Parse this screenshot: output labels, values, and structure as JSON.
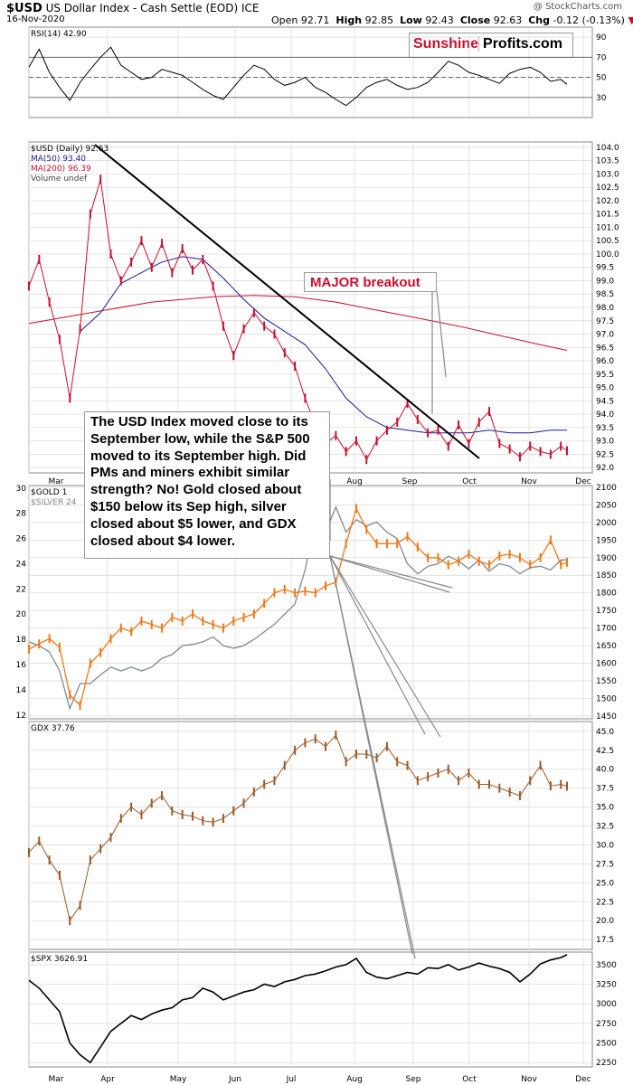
{
  "header": {
    "symbol": "$USD",
    "name": "US Dollar Index - Cash Settle (EOD)",
    "exchange": "ICE",
    "date": "16-Nov-2020",
    "watermark": "@ StockCharts.com",
    "ohlc": {
      "open_label": "Open",
      "open": "92.71",
      "high_label": "High",
      "high": "92.85",
      "low_label": "Low",
      "low": "92.43",
      "close_label": "Close",
      "close": "92.63",
      "chg_label": "Chg",
      "chg": "-0.12 (-0.13%)"
    }
  },
  "logo": {
    "left": "Sunshine",
    "right": "Profits.com"
  },
  "annotations": {
    "breakout": "MAJOR breakout",
    "comment_lines": [
      "The USD Index moved close to its",
      "September low, while the S&P 500",
      "moved to its September high. Did",
      "PMs and miners exhibit similar",
      "strength? No! Gold closed about",
      "$150 below its Sep high, silver",
      "closed about $5 lower, and GDX",
      "closed about $4 lower."
    ]
  },
  "colors": {
    "usd": "#c8102e",
    "ma50": "#1a1a9c",
    "ma200": "#c8102e",
    "gold": "#f07818",
    "silver": "#7f8a90",
    "gdx": "#9c5a28",
    "spx": "#000000",
    "rsi": "#000000",
    "grid": "#d8d8d8",
    "rsi_fill_overbought": "#6fa06f",
    "rsi_fill_oversold": "#a87070"
  },
  "x_axis": {
    "months": [
      "Mar",
      "Apr",
      "May",
      "Jun",
      "Jul",
      "Aug",
      "Sep",
      "Oct",
      "Nov",
      "Dec"
    ],
    "top_months": [
      "Mar",
      "Aug",
      "Sep",
      "Oct",
      "Nov",
      "Dec"
    ]
  },
  "chart_data": [
    {
      "type": "line",
      "title": "RSI(14) 42.90",
      "y_ticks": [
        30,
        50,
        70,
        90
      ],
      "ylim": [
        10,
        100
      ],
      "reference_lines": [
        30,
        50,
        70
      ],
      "x": [
        0,
        5,
        10,
        15,
        20,
        25,
        30,
        35,
        40,
        45,
        50,
        55,
        60,
        65,
        70,
        75,
        80,
        85,
        90,
        95,
        100,
        105,
        110,
        115,
        120,
        125,
        130,
        135,
        140,
        145,
        150,
        155,
        160,
        165,
        170,
        175,
        180,
        185,
        190,
        195,
        200,
        205,
        210,
        215,
        220,
        225,
        230,
        235,
        240,
        245,
        250,
        255,
        260,
        263
      ],
      "values": [
        60,
        78,
        55,
        40,
        27,
        45,
        58,
        70,
        80,
        62,
        55,
        48,
        50,
        58,
        55,
        52,
        45,
        38,
        32,
        28,
        40,
        52,
        62,
        58,
        48,
        42,
        45,
        50,
        40,
        35,
        28,
        22,
        30,
        40,
        45,
        48,
        42,
        38,
        40,
        45,
        55,
        66,
        62,
        55,
        52,
        48,
        44,
        54,
        58,
        60,
        55,
        46,
        48,
        43
      ]
    },
    {
      "type": "line",
      "title": "$USD (Daily) 92.63",
      "legend": [
        "MA(50) 93.40",
        "MA(200) 96.39",
        "Volume undef"
      ],
      "y_ticks": [
        92.0,
        92.5,
        93.0,
        93.5,
        94.0,
        94.5,
        95.0,
        95.5,
        96.0,
        96.5,
        97.0,
        97.5,
        98.0,
        98.5,
        99.0,
        99.5,
        100.0,
        100.5,
        101.0,
        101.5,
        102.0,
        102.5,
        103.0,
        103.5,
        104.0
      ],
      "ylim": [
        91.8,
        104.2
      ],
      "series": [
        {
          "name": "$USD (Daily) 92.63",
          "x": [
            0,
            5,
            10,
            15,
            20,
            25,
            30,
            35,
            40,
            45,
            50,
            55,
            60,
            65,
            70,
            75,
            80,
            85,
            90,
            95,
            100,
            105,
            110,
            115,
            120,
            125,
            130,
            135,
            140,
            145,
            150,
            155,
            160,
            165,
            170,
            175,
            180,
            185,
            190,
            195,
            200,
            205,
            210,
            215,
            220,
            225,
            230,
            235,
            240,
            245,
            250,
            255,
            260,
            263
          ],
          "values": [
            98.8,
            99.8,
            98.2,
            96.8,
            94.6,
            97.2,
            101.5,
            102.8,
            100.0,
            99.0,
            99.7,
            100.5,
            99.5,
            100.4,
            99.3,
            100.2,
            99.4,
            99.8,
            98.8,
            97.3,
            96.2,
            97.2,
            97.8,
            97.3,
            97.0,
            96.3,
            95.8,
            94.6,
            93.6,
            92.9,
            93.2,
            92.6,
            93.0,
            92.3,
            93.0,
            93.4,
            93.7,
            94.4,
            93.8,
            93.3,
            93.4,
            92.8,
            93.6,
            92.9,
            93.7,
            94.1,
            92.9,
            92.7,
            92.4,
            92.8,
            92.6,
            92.5,
            92.8,
            92.63
          ]
        },
        {
          "name": "MA(50) 93.40",
          "x": [
            25,
            35,
            45,
            55,
            65,
            75,
            85,
            95,
            105,
            115,
            125,
            135,
            145,
            155,
            165,
            175,
            185,
            195,
            205,
            215,
            225,
            235,
            245,
            255,
            263
          ],
          "values": [
            97.1,
            97.8,
            98.9,
            99.3,
            99.7,
            99.9,
            99.8,
            99.1,
            98.3,
            97.6,
            97.1,
            96.6,
            95.7,
            94.6,
            93.9,
            93.5,
            93.4,
            93.3,
            93.3,
            93.3,
            93.4,
            93.3,
            93.3,
            93.4,
            93.4
          ]
        },
        {
          "name": "MA(200) 96.39",
          "x": [
            0,
            30,
            60,
            90,
            110,
            130,
            150,
            170,
            190,
            210,
            230,
            250,
            263
          ],
          "values": [
            97.4,
            97.8,
            98.2,
            98.4,
            98.45,
            98.4,
            98.2,
            97.9,
            97.6,
            97.3,
            96.95,
            96.6,
            96.39
          ]
        }
      ]
    },
    {
      "type": "line",
      "title": "$GOLD 1",
      "legend": [
        "$GOLD 1",
        "$SILVER 24"
      ],
      "y_ticks_left": [
        12,
        14,
        16,
        18,
        20,
        22,
        24,
        26,
        28,
        30
      ],
      "y_ticks_right": [
        1450,
        1500,
        1550,
        1600,
        1650,
        1700,
        1750,
        1800,
        1850,
        1900,
        1950,
        2000,
        2050,
        2100
      ],
      "ylim_left": [
        11.7,
        30.2
      ],
      "ylim_right": [
        1442,
        2105
      ],
      "series": [
        {
          "name": "$GOLD 1",
          "axis": "right",
          "x": [
            0,
            5,
            10,
            15,
            20,
            25,
            30,
            35,
            40,
            45,
            50,
            55,
            60,
            65,
            70,
            75,
            80,
            85,
            90,
            95,
            100,
            105,
            110,
            115,
            120,
            125,
            130,
            135,
            140,
            145,
            150,
            155,
            160,
            165,
            170,
            175,
            180,
            185,
            190,
            195,
            200,
            205,
            210,
            215,
            220,
            225,
            230,
            235,
            240,
            245,
            250,
            255,
            260,
            263
          ],
          "values": [
            1640,
            1655,
            1670,
            1645,
            1510,
            1480,
            1600,
            1630,
            1670,
            1700,
            1690,
            1720,
            1710,
            1700,
            1730,
            1720,
            1740,
            1720,
            1710,
            1700,
            1720,
            1730,
            1740,
            1770,
            1800,
            1810,
            1800,
            1805,
            1800,
            1820,
            1830,
            1940,
            2040,
            1980,
            1940,
            1940,
            1940,
            1960,
            1930,
            1900,
            1900,
            1880,
            1890,
            1910,
            1890,
            1880,
            1905,
            1910,
            1900,
            1880,
            1900,
            1950,
            1880,
            1887
          ]
        },
        {
          "name": "$SILVER 24",
          "axis": "left",
          "x": [
            0,
            5,
            10,
            15,
            20,
            25,
            30,
            35,
            40,
            45,
            50,
            55,
            60,
            65,
            70,
            75,
            80,
            85,
            90,
            95,
            100,
            105,
            110,
            115,
            120,
            125,
            130,
            135,
            140,
            145,
            150,
            155,
            160,
            165,
            170,
            175,
            180,
            185,
            190,
            195,
            200,
            205,
            210,
            215,
            220,
            225,
            230,
            235,
            240,
            245,
            250,
            255,
            260,
            263
          ],
          "values": [
            17.8,
            17.5,
            17.0,
            15.5,
            12.5,
            14.5,
            14.5,
            15.2,
            15.8,
            15.5,
            15.8,
            15.5,
            15.8,
            16.5,
            16.8,
            17.5,
            17.6,
            17.8,
            18.2,
            17.5,
            17.3,
            17.5,
            18.0,
            18.6,
            19.2,
            20.0,
            20.8,
            23.5,
            27.5,
            26.5,
            28.5,
            26.5,
            27.5,
            27.0,
            27.3,
            26.5,
            26.0,
            24.0,
            23.2,
            23.8,
            24.0,
            24.6,
            24.2,
            23.6,
            24.3,
            23.4,
            24.0,
            23.8,
            23.2,
            23.7,
            23.8,
            23.5,
            24.3,
            24.3
          ]
        }
      ]
    },
    {
      "type": "line",
      "title": "GDX 37.76",
      "y_ticks": [
        17.5,
        20.0,
        22.5,
        25.0,
        27.5,
        30.0,
        32.5,
        35.0,
        37.5,
        40.0,
        42.5,
        45.0
      ],
      "ylim": [
        16.2,
        46.3
      ],
      "x": [
        0,
        5,
        10,
        15,
        20,
        25,
        30,
        35,
        40,
        45,
        50,
        55,
        60,
        65,
        70,
        75,
        80,
        85,
        90,
        95,
        100,
        105,
        110,
        115,
        120,
        125,
        130,
        135,
        140,
        145,
        150,
        155,
        160,
        165,
        170,
        175,
        180,
        185,
        190,
        195,
        200,
        205,
        210,
        215,
        220,
        225,
        230,
        235,
        240,
        245,
        250,
        255,
        260,
        263
      ],
      "values": [
        29.0,
        30.5,
        28.0,
        26.0,
        20.0,
        22.0,
        28.0,
        29.5,
        31.0,
        33.5,
        35.0,
        34.0,
        35.5,
        36.5,
        34.5,
        34.0,
        33.8,
        33.2,
        33.0,
        33.5,
        34.5,
        35.5,
        37.0,
        38.0,
        38.5,
        40.5,
        42.5,
        43.5,
        44.0,
        43.0,
        44.5,
        41.0,
        42.0,
        42.0,
        41.5,
        43.0,
        41.0,
        40.5,
        38.5,
        39.0,
        39.5,
        40.0,
        38.5,
        39.5,
        38.0,
        38.0,
        37.5,
        37.0,
        36.5,
        38.5,
        40.5,
        37.8,
        38.0,
        37.76
      ]
    },
    {
      "type": "line",
      "title": "$SPX 3626.91",
      "y_ticks": [
        2250,
        2500,
        2750,
        3000,
        3250,
        3500
      ],
      "ylim": [
        2195,
        3660
      ],
      "x": [
        0,
        5,
        10,
        15,
        20,
        25,
        30,
        35,
        40,
        45,
        50,
        55,
        60,
        65,
        70,
        75,
        80,
        85,
        90,
        95,
        100,
        105,
        110,
        115,
        120,
        125,
        130,
        135,
        140,
        145,
        150,
        155,
        160,
        165,
        170,
        175,
        180,
        185,
        190,
        195,
        200,
        205,
        210,
        215,
        220,
        225,
        230,
        235,
        240,
        245,
        250,
        255,
        260,
        263
      ],
      "values": [
        3300,
        3200,
        3050,
        2900,
        2500,
        2350,
        2250,
        2450,
        2650,
        2750,
        2850,
        2800,
        2870,
        2920,
        2950,
        3050,
        3080,
        3200,
        3150,
        3050,
        3100,
        3150,
        3180,
        3250,
        3220,
        3280,
        3310,
        3360,
        3380,
        3420,
        3470,
        3500,
        3580,
        3400,
        3340,
        3320,
        3360,
        3400,
        3380,
        3460,
        3450,
        3500,
        3430,
        3470,
        3520,
        3480,
        3450,
        3400,
        3280,
        3380,
        3510,
        3560,
        3590,
        3626.91
      ]
    }
  ]
}
